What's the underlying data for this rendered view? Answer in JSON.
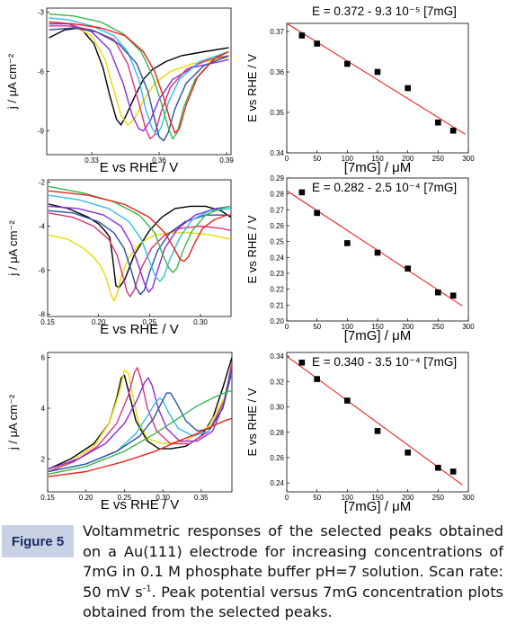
{
  "caption": {
    "label": "Figure 5",
    "text_main": "Voltammetric responses of the selected peaks obtained on a Au(111) electrode for increasing concentrations of 7mG in 0.1 M phosphate buffer pH=7 solution. Scan rate: 50 mV s",
    "text_sup": "-1",
    "text_tail": ". Peak potential versus 7mG concentration plots obtained from the selected peaks."
  },
  "chart_data": [
    {
      "type": "line",
      "panel": "left-top",
      "xlabel": "E vs RHE / V",
      "ylabel": "j / μA cm⁻²",
      "xlim": [
        0.31,
        0.392
      ],
      "ylim": [
        -10.2,
        -2.8
      ],
      "xticks": [
        "0.33",
        "0.36",
        "0.39"
      ],
      "yticks": [
        "-3",
        "-6",
        "-9"
      ],
      "series": [
        {
          "color": "#000000",
          "x": [
            0.311,
            0.318,
            0.325,
            0.331,
            0.335,
            0.338,
            0.341,
            0.343,
            0.345,
            0.349,
            0.353,
            0.357,
            0.363,
            0.37,
            0.38,
            0.391
          ],
          "y": [
            -4.3,
            -3.9,
            -3.8,
            -4.6,
            -5.8,
            -7.2,
            -8.4,
            -8.7,
            -8.3,
            -7.3,
            -6.4,
            -5.9,
            -5.5,
            -5.2,
            -5.0,
            -4.8
          ]
        },
        {
          "color": "#e6dc00",
          "x": [
            0.311,
            0.32,
            0.33,
            0.336,
            0.34,
            0.343,
            0.346,
            0.349,
            0.353,
            0.358,
            0.365,
            0.375,
            0.391
          ],
          "y": [
            -3.5,
            -3.6,
            -4.2,
            -5.4,
            -7.0,
            -8.2,
            -8.7,
            -8.4,
            -7.5,
            -6.6,
            -6.0,
            -5.6,
            -5.3
          ]
        },
        {
          "color": "#8a2be2",
          "x": [
            0.311,
            0.32,
            0.33,
            0.338,
            0.344,
            0.348,
            0.351,
            0.353,
            0.356,
            0.36,
            0.366,
            0.375,
            0.391
          ],
          "y": [
            -3.6,
            -3.6,
            -4.0,
            -4.9,
            -6.6,
            -8.2,
            -8.9,
            -9.0,
            -8.5,
            -7.4,
            -6.4,
            -5.8,
            -5.4
          ]
        },
        {
          "color": "#e0307a",
          "x": [
            0.311,
            0.32,
            0.33,
            0.34,
            0.346,
            0.351,
            0.354,
            0.356,
            0.358,
            0.361,
            0.365,
            0.372,
            0.382,
            0.391
          ],
          "y": [
            -3.7,
            -3.7,
            -3.9,
            -4.4,
            -5.6,
            -7.6,
            -8.9,
            -9.4,
            -9.2,
            -8.0,
            -6.8,
            -5.9,
            -5.4,
            -5.2
          ]
        },
        {
          "color": "#33bde8",
          "x": [
            0.311,
            0.32,
            0.33,
            0.34,
            0.346,
            0.351,
            0.354,
            0.357,
            0.359,
            0.361,
            0.364,
            0.369,
            0.378,
            0.391
          ],
          "y": [
            -3.3,
            -3.4,
            -3.7,
            -4.2,
            -5.0,
            -6.4,
            -7.9,
            -8.9,
            -9.2,
            -8.8,
            -7.6,
            -6.4,
            -5.5,
            -5.0
          ]
        },
        {
          "color": "#2e4fa0",
          "x": [
            0.311,
            0.322,
            0.332,
            0.342,
            0.35,
            0.355,
            0.358,
            0.36,
            0.362,
            0.364,
            0.367,
            0.372,
            0.38,
            0.391
          ],
          "y": [
            -3.9,
            -3.8,
            -4.0,
            -4.6,
            -5.6,
            -7.0,
            -8.4,
            -9.3,
            -9.5,
            -9.1,
            -7.9,
            -6.6,
            -5.7,
            -5.2
          ]
        },
        {
          "color": "#3cb44b",
          "x": [
            0.311,
            0.322,
            0.334,
            0.344,
            0.352,
            0.357,
            0.361,
            0.364,
            0.366,
            0.368,
            0.371,
            0.376,
            0.384,
            0.391
          ],
          "y": [
            -3.1,
            -3.2,
            -3.5,
            -4.1,
            -5.0,
            -6.2,
            -7.6,
            -8.8,
            -9.4,
            -9.1,
            -7.8,
            -6.4,
            -5.4,
            -5.0
          ]
        },
        {
          "color": "#e8231f",
          "x": [
            0.311,
            0.322,
            0.334,
            0.345,
            0.353,
            0.358,
            0.362,
            0.365,
            0.367,
            0.369,
            0.372,
            0.377,
            0.385,
            0.391
          ],
          "y": [
            -3.5,
            -3.6,
            -3.8,
            -4.2,
            -5.0,
            -6.0,
            -7.3,
            -8.5,
            -9.1,
            -8.9,
            -7.7,
            -6.3,
            -5.3,
            -5.0
          ]
        }
      ]
    },
    {
      "type": "scatter",
      "panel": "right-top",
      "title": "E = 0.372 - 9.3 10⁻⁵ [7mG]",
      "xlabel": "[7mG] / μM",
      "ylabel": "E vs RHE / V",
      "xlim": [
        0,
        300
      ],
      "ylim": [
        0.34,
        0.372
      ],
      "xticks": [
        "0",
        "50",
        "100",
        "150",
        "200",
        "250",
        "300"
      ],
      "yticks": [
        "0.34",
        "0.35",
        "0.36",
        "0.37"
      ],
      "points": {
        "x": [
          25,
          50,
          100,
          150,
          200,
          250,
          275
        ],
        "y": [
          0.369,
          0.367,
          0.362,
          0.36,
          0.356,
          0.3475,
          0.3455
        ]
      },
      "fit": {
        "intercept": 0.372,
        "slope": -9.3e-05,
        "x_range": [
          0,
          295
        ]
      }
    },
    {
      "type": "line",
      "panel": "left-middle",
      "xlabel": "E vs RHE / V",
      "ylabel": "j / μA cm⁻²",
      "xlim": [
        0.15,
        0.33
      ],
      "ylim": [
        -8.1,
        -1.9
      ],
      "xticks": [
        "0.15",
        "0.20",
        "0.25",
        "0.30"
      ],
      "yticks": [
        "-2",
        "-4",
        "-6",
        "-8"
      ],
      "series": [
        {
          "color": "#000000",
          "x": [
            0.151,
            0.17,
            0.19,
            0.2,
            0.206,
            0.211,
            0.214,
            0.217,
            0.22,
            0.226,
            0.235,
            0.25,
            0.262,
            0.275,
            0.29,
            0.305,
            0.32,
            0.33
          ],
          "y": [
            -3.0,
            -3.2,
            -3.6,
            -3.9,
            -4.2,
            -4.5,
            -5.5,
            -6.7,
            -6.8,
            -6.4,
            -5.3,
            -4.2,
            -3.6,
            -3.2,
            -3.1,
            -3.1,
            -3.3,
            -3.6
          ]
        },
        {
          "color": "#e6dc00",
          "x": [
            0.151,
            0.17,
            0.185,
            0.195,
            0.202,
            0.208,
            0.212,
            0.215,
            0.218,
            0.222,
            0.23,
            0.24,
            0.255,
            0.272,
            0.29,
            0.31,
            0.33
          ],
          "y": [
            -4.4,
            -4.6,
            -5.0,
            -5.4,
            -5.8,
            -6.4,
            -7.1,
            -7.4,
            -7.1,
            -6.3,
            -5.4,
            -4.8,
            -4.4,
            -4.3,
            -4.3,
            -4.4,
            -4.6
          ]
        },
        {
          "color": "#e0307a",
          "x": [
            0.151,
            0.175,
            0.195,
            0.21,
            0.218,
            0.224,
            0.228,
            0.231,
            0.235,
            0.242,
            0.252,
            0.265,
            0.28,
            0.3,
            0.32,
            0.33
          ],
          "y": [
            -3.4,
            -3.6,
            -4.0,
            -4.6,
            -5.3,
            -6.3,
            -7.0,
            -7.2,
            -6.9,
            -5.9,
            -5.0,
            -4.4,
            -4.1,
            -4.0,
            -4.1,
            -4.2
          ]
        },
        {
          "color": "#2e4fa0",
          "x": [
            0.151,
            0.175,
            0.2,
            0.215,
            0.225,
            0.232,
            0.237,
            0.241,
            0.245,
            0.25,
            0.258,
            0.27,
            0.285,
            0.305,
            0.33
          ],
          "y": [
            -3.3,
            -3.4,
            -3.8,
            -4.3,
            -5.0,
            -6.0,
            -6.8,
            -7.1,
            -6.9,
            -6.1,
            -5.1,
            -4.3,
            -3.8,
            -3.5,
            -3.5
          ]
        },
        {
          "color": "#8a2be2",
          "x": [
            0.151,
            0.18,
            0.205,
            0.222,
            0.232,
            0.24,
            0.245,
            0.249,
            0.253,
            0.258,
            0.265,
            0.278,
            0.295,
            0.315,
            0.33
          ],
          "y": [
            -3.1,
            -3.2,
            -3.5,
            -4.0,
            -4.8,
            -5.9,
            -6.6,
            -7.0,
            -6.8,
            -6.0,
            -5.0,
            -4.1,
            -3.5,
            -3.2,
            -3.1
          ]
        },
        {
          "color": "#33bde8",
          "x": [
            0.151,
            0.18,
            0.21,
            0.23,
            0.242,
            0.25,
            0.256,
            0.26,
            0.264,
            0.27,
            0.28,
            0.292,
            0.31,
            0.33
          ],
          "y": [
            -2.6,
            -2.8,
            -3.2,
            -3.8,
            -4.6,
            -5.6,
            -6.3,
            -6.5,
            -6.3,
            -5.5,
            -4.5,
            -3.7,
            -3.3,
            -3.2
          ]
        },
        {
          "color": "#3cb44b",
          "x": [
            0.151,
            0.185,
            0.215,
            0.24,
            0.255,
            0.263,
            0.269,
            0.273,
            0.277,
            0.283,
            0.292,
            0.305,
            0.32,
            0.33
          ],
          "y": [
            -2.2,
            -2.5,
            -2.9,
            -3.5,
            -4.3,
            -5.3,
            -5.9,
            -6.1,
            -5.9,
            -5.1,
            -4.2,
            -3.5,
            -3.2,
            -3.1
          ]
        },
        {
          "color": "#e8231f",
          "x": [
            0.151,
            0.19,
            0.225,
            0.25,
            0.265,
            0.274,
            0.28,
            0.284,
            0.288,
            0.294,
            0.302,
            0.314,
            0.326,
            0.33
          ],
          "y": [
            -2.4,
            -2.6,
            -3.0,
            -3.6,
            -4.3,
            -5.0,
            -5.5,
            -5.6,
            -5.4,
            -4.8,
            -4.1,
            -3.7,
            -3.5,
            -3.5
          ]
        }
      ]
    },
    {
      "type": "scatter",
      "panel": "right-middle",
      "title": "E = 0.282 - 2.5 10⁻⁴ [7mG]",
      "xlabel": "[7mG] / μM",
      "ylabel": "E vs RHE / V",
      "xlim": [
        0,
        300
      ],
      "ylim": [
        0.2,
        0.29
      ],
      "xticks": [
        "0",
        "50",
        "100",
        "150",
        "200",
        "250",
        "300"
      ],
      "yticks": [
        "0.20",
        "0.21",
        "0.22",
        "0.23",
        "0.24",
        "0.25",
        "0.26",
        "0.27",
        "0.28",
        "0.29"
      ],
      "points": {
        "x": [
          25,
          50,
          100,
          150,
          200,
          250,
          275
        ],
        "y": [
          0.281,
          0.268,
          0.249,
          0.243,
          0.233,
          0.218,
          0.216
        ]
      },
      "fit": {
        "intercept": 0.282,
        "slope": -0.00025,
        "x_range": [
          0,
          290
        ]
      }
    },
    {
      "type": "line",
      "panel": "left-bottom",
      "xlabel": "E vs RHE / V",
      "ylabel": "j / μA cm⁻²",
      "xlim": [
        0.15,
        0.39
      ],
      "ylim": [
        0.7,
        6.2
      ],
      "xticks": [
        "0.15",
        "0.20",
        "0.25",
        "0.30",
        "0.35"
      ],
      "yticks": [
        "2",
        "4",
        "6"
      ],
      "series": [
        {
          "color": "#000000",
          "x": [
            0.151,
            0.18,
            0.21,
            0.23,
            0.24,
            0.246,
            0.25,
            0.256,
            0.265,
            0.28,
            0.295,
            0.31,
            0.33,
            0.35,
            0.365,
            0.378,
            0.39
          ],
          "y": [
            1.6,
            2.0,
            2.6,
            3.4,
            4.4,
            5.2,
            5.3,
            4.6,
            3.5,
            2.7,
            2.4,
            2.4,
            2.5,
            2.9,
            3.6,
            4.8,
            6.0
          ]
        },
        {
          "color": "#e6dc00",
          "x": [
            0.151,
            0.18,
            0.21,
            0.23,
            0.242,
            0.25,
            0.255,
            0.26,
            0.268,
            0.28,
            0.3,
            0.33,
            0.36,
            0.38,
            0.39
          ],
          "y": [
            1.5,
            1.9,
            2.5,
            3.4,
            4.5,
            5.5,
            5.4,
            4.6,
            3.5,
            2.8,
            2.6,
            2.7,
            3.3,
            4.4,
            5.6
          ]
        },
        {
          "color": "#e0307a",
          "x": [
            0.151,
            0.185,
            0.215,
            0.24,
            0.255,
            0.263,
            0.267,
            0.272,
            0.28,
            0.292,
            0.31,
            0.335,
            0.36,
            0.38,
            0.39
          ],
          "y": [
            1.5,
            1.9,
            2.5,
            3.4,
            4.5,
            5.4,
            5.6,
            5.1,
            4.0,
            3.1,
            2.6,
            2.6,
            3.1,
            4.3,
            5.8
          ]
        },
        {
          "color": "#8a2be2",
          "x": [
            0.151,
            0.19,
            0.225,
            0.25,
            0.266,
            0.276,
            0.281,
            0.286,
            0.294,
            0.305,
            0.322,
            0.345,
            0.365,
            0.38,
            0.39
          ],
          "y": [
            1.6,
            2.0,
            2.6,
            3.4,
            4.3,
            5.0,
            5.2,
            4.9,
            4.0,
            3.2,
            2.7,
            2.7,
            3.1,
            4.2,
            5.6
          ]
        },
        {
          "color": "#33bde8",
          "x": [
            0.151,
            0.2,
            0.24,
            0.265,
            0.28,
            0.29,
            0.296,
            0.3,
            0.308,
            0.32,
            0.34,
            0.36,
            0.378,
            0.39
          ],
          "y": [
            1.5,
            1.8,
            2.3,
            3.0,
            3.7,
            4.2,
            4.4,
            4.3,
            3.8,
            3.2,
            2.9,
            3.1,
            4.0,
            5.4
          ]
        },
        {
          "color": "#2e4fa0",
          "x": [
            0.151,
            0.2,
            0.24,
            0.27,
            0.288,
            0.298,
            0.305,
            0.31,
            0.318,
            0.33,
            0.345,
            0.362,
            0.378,
            0.39
          ],
          "y": [
            1.5,
            1.8,
            2.3,
            2.9,
            3.6,
            4.2,
            4.6,
            4.6,
            4.2,
            3.5,
            3.1,
            3.2,
            4.0,
            5.5
          ]
        },
        {
          "color": "#3cb44b",
          "x": [
            0.151,
            0.2,
            0.25,
            0.29,
            0.32,
            0.345,
            0.365,
            0.38,
            0.39
          ],
          "y": [
            1.4,
            1.7,
            2.3,
            3.0,
            3.6,
            4.1,
            4.4,
            4.6,
            4.7
          ]
        },
        {
          "color": "#e8231f",
          "x": [
            0.151,
            0.2,
            0.25,
            0.29,
            0.32,
            0.345,
            0.365,
            0.38,
            0.39
          ],
          "y": [
            1.3,
            1.5,
            1.9,
            2.3,
            2.7,
            3.0,
            3.3,
            3.5,
            3.6
          ]
        }
      ]
    },
    {
      "type": "scatter",
      "panel": "right-bottom",
      "title": "E = 0.340 - 3.5 10⁻⁴ [7mG]",
      "xlabel": "[7mG] / μM",
      "ylabel": "E vs RHE / V",
      "xlim": [
        0,
        300
      ],
      "ylim": [
        0.233,
        0.343
      ],
      "xticks": [
        "0",
        "50",
        "100",
        "150",
        "200",
        "250",
        "300"
      ],
      "yticks": [
        "0.24",
        "0.26",
        "0.28",
        "0.30",
        "0.32",
        "0.34"
      ],
      "points": {
        "x": [
          25,
          50,
          100,
          150,
          200,
          250,
          275
        ],
        "y": [
          0.335,
          0.322,
          0.305,
          0.281,
          0.264,
          0.252,
          0.249
        ]
      },
      "fit": {
        "intercept": 0.34,
        "slope": -0.00035,
        "x_range": [
          0,
          290
        ]
      }
    }
  ]
}
